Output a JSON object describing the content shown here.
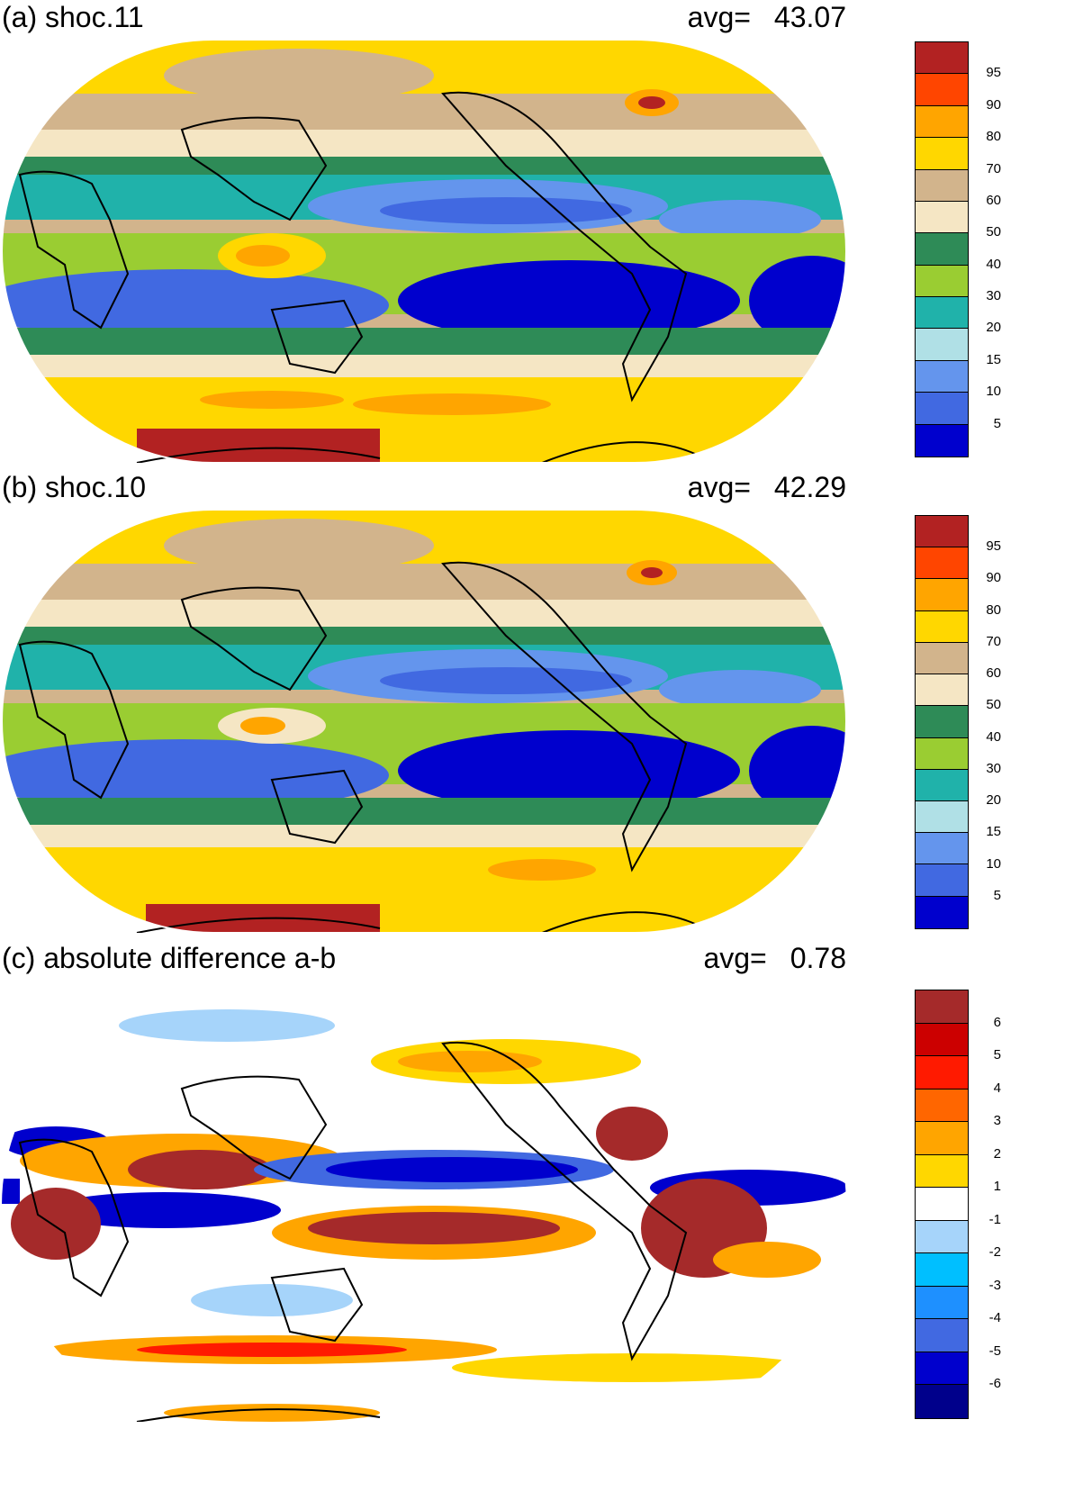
{
  "panels": [
    {
      "title": "(a) shoc.11",
      "avg_label": "avg=",
      "avg_value": "43.07",
      "colorbar": {
        "labels": [
          "95",
          "90",
          "80",
          "70",
          "60",
          "50",
          "40",
          "30",
          "20",
          "15",
          "10",
          "5"
        ],
        "colors": [
          "#b22222",
          "#ff4500",
          "#ffa500",
          "#ffd700",
          "#d2b48c",
          "#f5e6c4",
          "#2e8b57",
          "#9acd32",
          "#20b2aa",
          "#b0e0e6",
          "#6495ed",
          "#4169e1",
          "#0000cd"
        ]
      }
    },
    {
      "title": "(b) shoc.10",
      "avg_label": "avg=",
      "avg_value": "42.29",
      "colorbar": {
        "labels": [
          "95",
          "90",
          "80",
          "70",
          "60",
          "50",
          "40",
          "30",
          "20",
          "15",
          "10",
          "5"
        ],
        "colors": [
          "#b22222",
          "#ff4500",
          "#ffa500",
          "#ffd700",
          "#d2b48c",
          "#f5e6c4",
          "#2e8b57",
          "#9acd32",
          "#20b2aa",
          "#b0e0e6",
          "#6495ed",
          "#4169e1",
          "#0000cd"
        ]
      }
    },
    {
      "title": "(c) absolute difference a-b",
      "avg_label": "avg=",
      "avg_value": "0.78",
      "colorbar": {
        "labels": [
          "6",
          "5",
          "4",
          "3",
          "2",
          "1",
          "-1",
          "-2",
          "-3",
          "-4",
          "-5",
          "-6"
        ],
        "colors": [
          "#a52a2a",
          "#cc0000",
          "#ff1a00",
          "#ff6600",
          "#ffa500",
          "#ffd700",
          "#ffffff",
          "#a6d4fa",
          "#00bfff",
          "#1e90ff",
          "#4169e1",
          "#0000cd",
          "#00008b"
        ]
      }
    }
  ]
}
